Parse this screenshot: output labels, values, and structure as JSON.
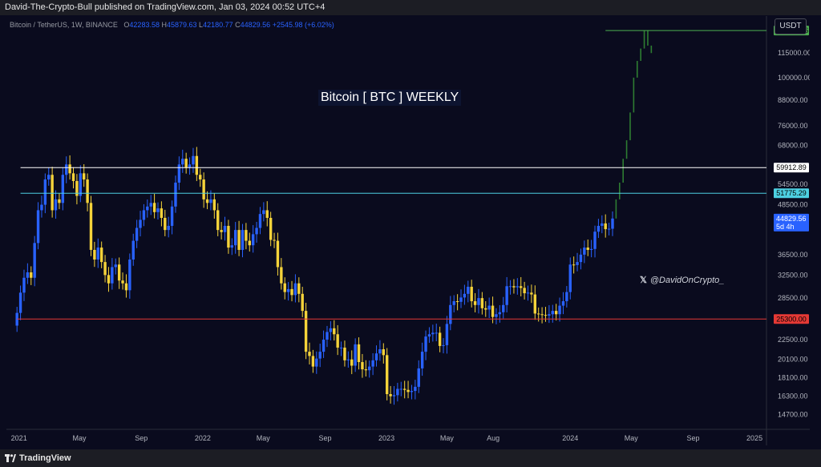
{
  "header": {
    "published_line": "David-The-Crypto-Bull published on TradingView.com, Jan 03, 2024 00:52 UTC+4"
  },
  "symbol": {
    "name": "Bitcoin / TetherUS, 1W, BINANCE",
    "open_label": "O",
    "open": "42283.58",
    "high_label": "H",
    "high": "45879.63",
    "low_label": "L",
    "low": "42180.77",
    "close_label": "C",
    "close": "44829.56",
    "change": "+2545.98 (+6.02%)"
  },
  "currency_button": "USDT",
  "title": "Bitcoin [ BTC ] WEEKLY",
  "watermark": "@DavidOnCrypto_",
  "footer": {
    "brand": "TradingView"
  },
  "colors": {
    "background": "#0a0b1e",
    "up_candle": "#2962ff",
    "down_candle": "#f5d33a",
    "projection": "#2e7d32",
    "target_line": "#4caf50",
    "white_level": "#ffffff",
    "cyan_level": "#4dd0e1",
    "red_level": "#e53935"
  },
  "chart_data": {
    "type": "candlestick",
    "scale": "log",
    "ylim": [
      13500,
      142000
    ],
    "xlim": [
      "2020-12-07",
      "2025-01-20"
    ],
    "y_ticks": [
      14700,
      16300,
      18100,
      20100,
      22500,
      28500,
      32500,
      36500,
      48500,
      54500,
      68000,
      76000,
      88000,
      100000,
      115000
    ],
    "y_tick_labels": [
      "14700.00",
      "16300.00",
      "18100.00",
      "20100.00",
      "22500.00",
      "28500.00",
      "32500.00",
      "36500.00",
      "48500.00",
      "54500.00",
      "68000.00",
      "76000.00",
      "88000.00",
      "100000.00",
      "115000.00"
    ],
    "x_ticks": [
      {
        "date": "2021-01-01",
        "label": "2021"
      },
      {
        "date": "2021-05-01",
        "label": "May"
      },
      {
        "date": "2021-09-01",
        "label": "Sep"
      },
      {
        "date": "2022-01-01",
        "label": "2022"
      },
      {
        "date": "2022-05-01",
        "label": "May"
      },
      {
        "date": "2022-09-01",
        "label": "Sep"
      },
      {
        "date": "2023-01-01",
        "label": "2023"
      },
      {
        "date": "2023-05-01",
        "label": "May"
      },
      {
        "date": "2023-08-01",
        "label": "Aug"
      },
      {
        "date": "2024-01-01",
        "label": "2024"
      },
      {
        "date": "2024-05-01",
        "label": "May"
      },
      {
        "date": "2024-09-01",
        "label": "Sep"
      },
      {
        "date": "2025-01-01",
        "label": "2025"
      }
    ],
    "horizontal_levels": [
      {
        "value": 130765.26,
        "label": "130765.26",
        "color": "#4caf50",
        "start": "2024-03-11"
      },
      {
        "value": 59912.89,
        "label": "59912.89",
        "color": "#ffffff",
        "start": "2021-01-04"
      },
      {
        "value": 51775.29,
        "label": "51775.29",
        "color": "#4dd0e1",
        "start": "2021-01-04"
      },
      {
        "value": 25300.0,
        "label": "25300.00",
        "color": "#e53935",
        "start": "2020-12-28"
      }
    ],
    "last_price": {
      "value": 44829.56,
      "label": "44829.56",
      "countdown": "5d 4h"
    },
    "start_date": "2020-12-28",
    "closes": [
      26200,
      29400,
      32000,
      33000,
      32000,
      39000,
      47000,
      48500,
      56000,
      57500,
      47000,
      50000,
      49000,
      57500,
      61000,
      58000,
      55500,
      51000,
      58000,
      56000,
      49000,
      37500,
      35500,
      38000,
      35000,
      32500,
      31000,
      34000,
      34500,
      31500,
      31000,
      29800,
      35500,
      39500,
      42500,
      44500,
      47000,
      48000,
      49000,
      46500,
      47500,
      45000,
      42000,
      43000,
      48000,
      55000,
      61000,
      63000,
      60000,
      61000,
      64000,
      57500,
      56000,
      50000,
      49000,
      50000,
      47000,
      42000,
      41500,
      43000,
      38000,
      38500,
      42000,
      37500,
      42000,
      39500,
      38500,
      41000,
      42500,
      46000,
      47000,
      45000,
      39700,
      39500,
      34000,
      31000,
      29500,
      30000,
      29000,
      31000,
      29200,
      26500,
      21000,
      20500,
      19300,
      20200,
      21000,
      22500,
      23500,
      24000,
      23200,
      21500,
      21500,
      20000,
      20100,
      19400,
      21900,
      19800,
      19000,
      18900,
      19300,
      20000,
      20800,
      21300,
      20600,
      16500,
      16300,
      16400,
      17000,
      17000,
      16900,
      16700,
      16800,
      17200,
      19100,
      21000,
      22900,
      23200,
      23400,
      23400,
      21700,
      21800,
      24600,
      27400,
      28000,
      27900,
      28600,
      29200,
      30400,
      28000,
      27400,
      28500,
      26900,
      26700,
      27300,
      25600,
      26000,
      26300,
      27400,
      30500,
      30500,
      30300,
      30500,
      30200,
      29300,
      29400,
      29100,
      26100,
      26000,
      25900,
      25800,
      26000,
      26500,
      26000,
      27300,
      28000,
      29500,
      34500,
      34400,
      35000,
      36500,
      38000,
      37500,
      37700,
      41600,
      43000,
      43600,
      42200,
      42300,
      44830
    ],
    "projection_closes": [
      50000,
      55000,
      63000,
      70000,
      82000,
      100000,
      110000,
      118000,
      130765,
      120000,
      115000
    ]
  }
}
